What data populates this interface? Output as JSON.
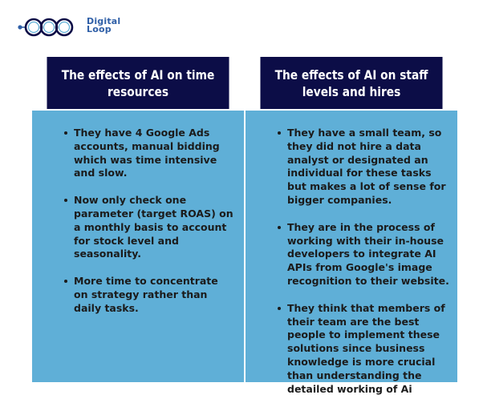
{
  "brand": {
    "line1": "Digital",
    "line2": "Loop",
    "logo_color": "#2f5fa7"
  },
  "colors": {
    "header_bg": "#0c0d47",
    "body_bg": "#5fafd7",
    "header_text": "#ffffff",
    "body_text": "#1b1b1b"
  },
  "columns": [
    {
      "heading": "The effects of AI on time resources",
      "bullets": [
        "They have 4  Google Ads accounts, manual bidding which was time intensive and slow.",
        "Now only check one parameter (target ROAS) on a monthly basis to account for stock level and seasonality.",
        "More time to concentrate on strategy rather than daily tasks."
      ]
    },
    {
      "heading": "The effects of AI on staff levels and hires",
      "bullets": [
        "They have a small team, so they did not hire a data analyst or designated an individual for these tasks but makes a lot of sense for bigger companies.",
        "They are in the process of working with their in-house developers to integrate AI APIs from Google's image recognition to their website.",
        "They think that members of their team are the best people to implement these solutions since business knowledge is more crucial than understanding the detailed working of Ai"
      ]
    }
  ]
}
